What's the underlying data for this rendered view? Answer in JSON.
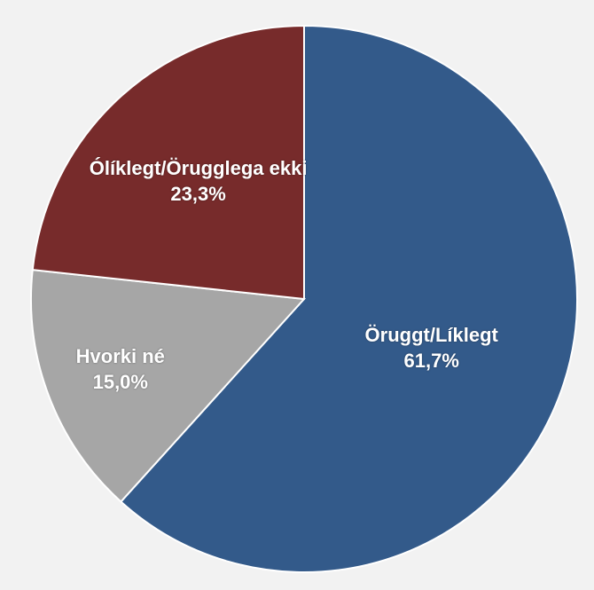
{
  "chart_data": {
    "type": "pie",
    "categories": [
      "Öruggt/Líklegt",
      "Hvorki né",
      "Ólíklegt/Örugglega ekki"
    ],
    "values": [
      61.7,
      15.0,
      23.3
    ],
    "value_labels": [
      "61,7%",
      "15,0%",
      "23,3%"
    ],
    "colors": [
      "#335a8a",
      "#a6a6a6",
      "#772b2b"
    ]
  }
}
